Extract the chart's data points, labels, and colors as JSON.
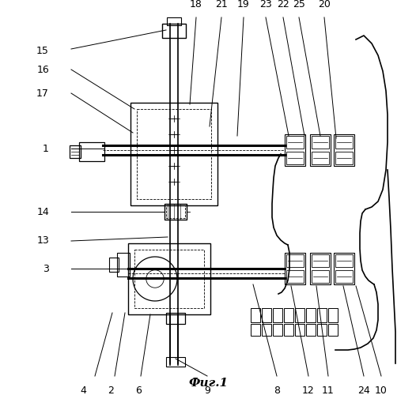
{
  "title": "Фиг.1",
  "background": "#ffffff",
  "color": "black"
}
